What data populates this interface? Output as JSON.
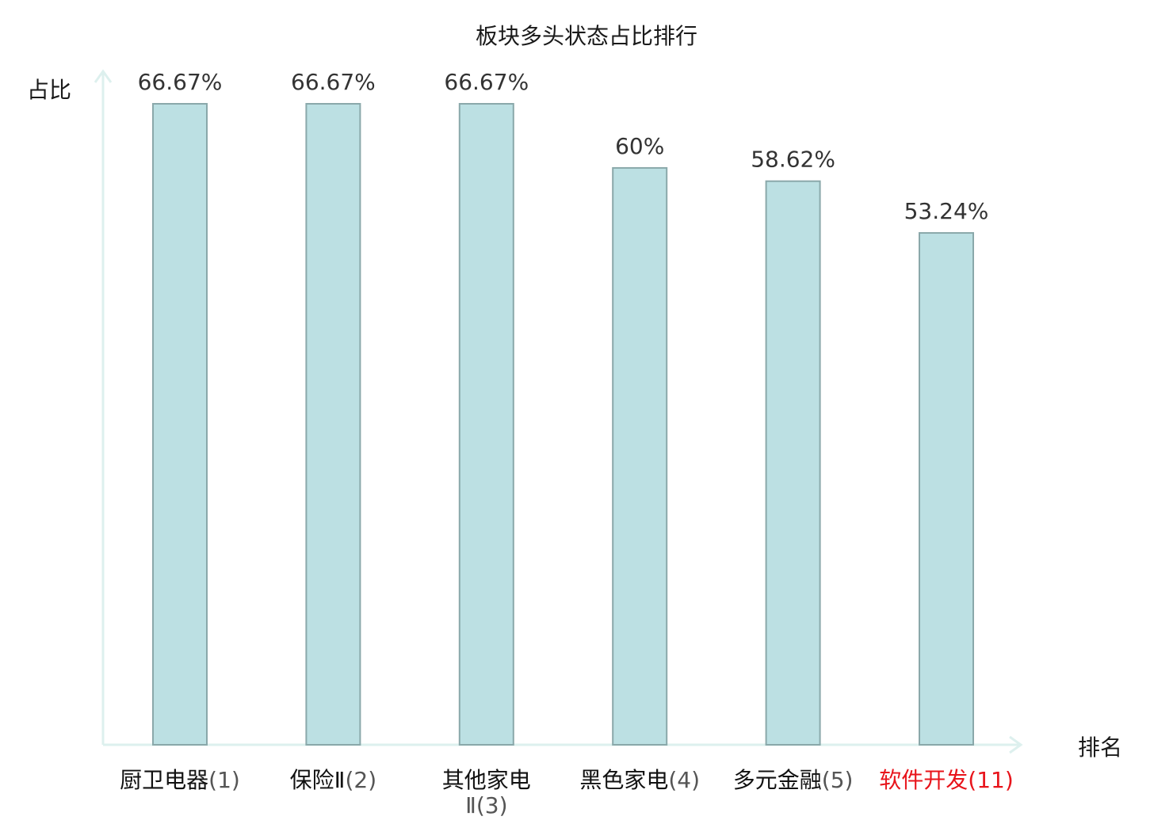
{
  "chart_data": {
    "type": "bar",
    "title": "板块多头状态占比排行",
    "ylabel": "占比",
    "xlabel": "排名",
    "categories": [
      [
        "厨卫电器",
        "(1)"
      ],
      [
        "保险Ⅱ",
        "(2)"
      ],
      [
        "其他家电",
        "Ⅱ(3)"
      ],
      [
        "黑色家电",
        "(4)"
      ],
      [
        "多元金融",
        "(5)"
      ],
      [
        "软件开发",
        "(11)"
      ]
    ],
    "values": [
      66.67,
      66.67,
      66.67,
      60,
      58.62,
      53.24
    ],
    "value_labels": [
      "66.67%",
      "66.67%",
      "66.67%",
      "60%",
      "58.62%",
      "53.24%"
    ],
    "highlight_index": 5,
    "ylim": [
      0,
      66.67
    ],
    "grid": false,
    "colors": {
      "bar_fill": "#bce0e3",
      "bar_stroke": "#8aa8aa",
      "axis": "#ddf0ee",
      "label": "#333333",
      "highlight": "#e8141b",
      "rank_text": "#555555"
    }
  }
}
